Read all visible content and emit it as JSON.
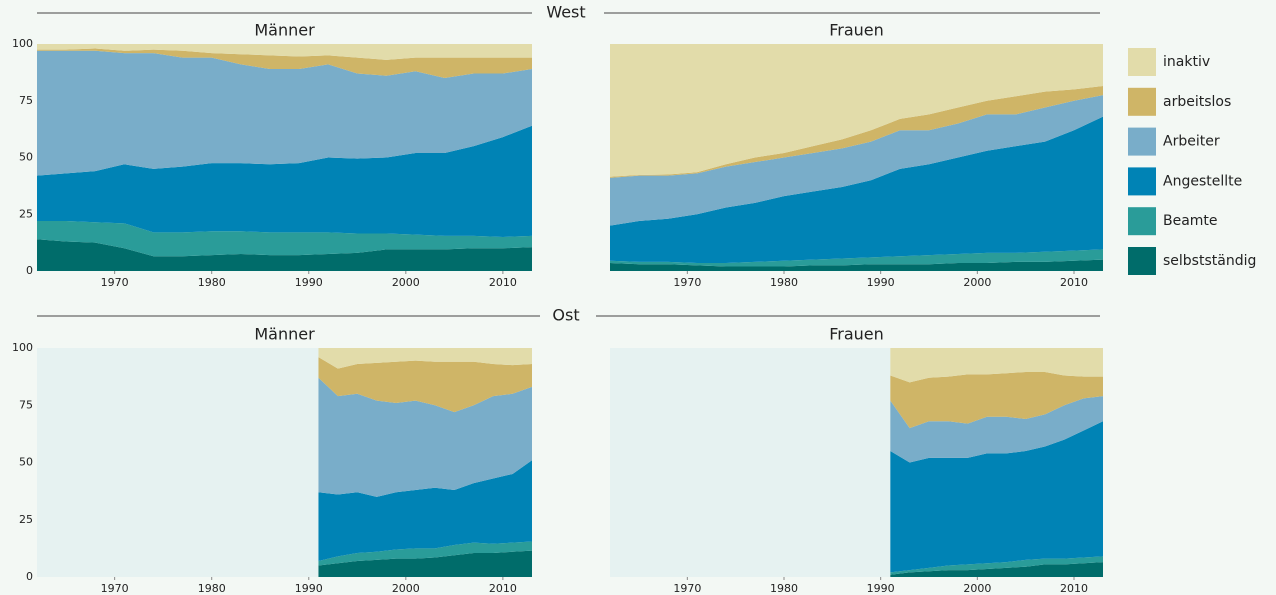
{
  "row_labels": [
    "West",
    "Ost"
  ],
  "legend": [
    {
      "name": "selbstständig",
      "color": "#006c6a"
    },
    {
      "name": "Beamte",
      "color": "#2a9c99"
    },
    {
      "name": "Angestellte",
      "color": "#0083b5"
    },
    {
      "name": "Arbeiter",
      "color": "#79adc9"
    },
    {
      "name": "arbeitslos",
      "color": "#cfb567"
    },
    {
      "name": "inaktiv",
      "color": "#e2dcaa"
    }
  ],
  "chart_data": [
    {
      "type": "area",
      "stacked": true,
      "title": "Männer",
      "x": [
        1962,
        1965,
        1968,
        1971,
        1974,
        1977,
        1980,
        1983,
        1986,
        1989,
        1992,
        1995,
        1998,
        2001,
        2004,
        2007,
        2010,
        2013
      ],
      "xlim": [
        1962,
        2013
      ],
      "xticks": [
        1970,
        1980,
        1990,
        2000,
        2010
      ],
      "ylim": [
        0,
        100
      ],
      "yticks": [
        0,
        25,
        50,
        75,
        100
      ],
      "series": [
        {
          "values": [
            14,
            13,
            12.5,
            10,
            6.5,
            6.5,
            7,
            7.5,
            7,
            7,
            7.5,
            8,
            9.5,
            9.5,
            9.5,
            10,
            10,
            10.5
          ]
        },
        {
          "values": [
            8,
            9,
            9,
            11,
            10.5,
            10.5,
            10.5,
            10,
            10,
            10,
            9.5,
            8.5,
            7,
            6.5,
            6,
            5.5,
            5,
            5
          ]
        },
        {
          "values": [
            20,
            21,
            22.5,
            26,
            28,
            29,
            30,
            30,
            30,
            30.5,
            33,
            33,
            33.5,
            36,
            36.5,
            39.5,
            44,
            48.5
          ]
        },
        {
          "values": [
            55,
            54,
            53,
            49,
            51,
            48,
            46.5,
            43.5,
            42,
            41.5,
            41,
            37.5,
            36,
            36,
            33,
            32,
            28,
            25
          ]
        },
        {
          "values": [
            0.5,
            0.5,
            1,
            1,
            1.5,
            3,
            2,
            4.5,
            6,
            5.5,
            4,
            7,
            7,
            6,
            9,
            7,
            7,
            5
          ]
        },
        {
          "values": [
            2.5,
            2.5,
            2,
            3,
            2.5,
            3,
            4,
            4.5,
            5,
            5.5,
            5,
            6,
            7,
            6,
            6,
            6,
            6,
            6
          ]
        }
      ]
    },
    {
      "type": "area",
      "stacked": true,
      "title": "Frauen",
      "x": [
        1962,
        1965,
        1968,
        1971,
        1974,
        1977,
        1980,
        1983,
        1986,
        1989,
        1992,
        1995,
        1998,
        2001,
        2004,
        2007,
        2010,
        2013
      ],
      "xlim": [
        1962,
        2013
      ],
      "xticks": [
        1970,
        1980,
        1990,
        2000,
        2010
      ],
      "ylim": [
        0,
        100
      ],
      "series": [
        {
          "values": [
            3.5,
            3,
            3,
            2.5,
            2,
            2,
            2,
            2.5,
            2.5,
            3,
            3,
            3,
            3.5,
            3.5,
            4,
            4,
            4.5,
            5
          ]
        },
        {
          "values": [
            1,
            1,
            1,
            1,
            1.5,
            2,
            2.5,
            2.5,
            3,
            3,
            3.5,
            4,
            4,
            4.5,
            4,
            4.5,
            4.5,
            4.5
          ]
        },
        {
          "values": [
            15.5,
            18,
            19,
            21.5,
            24.5,
            26,
            28.5,
            30,
            31.5,
            34,
            38.5,
            40,
            42.5,
            45,
            47,
            48.5,
            53,
            58.5
          ]
        },
        {
          "values": [
            21,
            20,
            19,
            18,
            18,
            18,
            17,
            17,
            17,
            17,
            17,
            15,
            15,
            16,
            14,
            15,
            13,
            9.5
          ]
        },
        {
          "values": [
            0.5,
            0.3,
            0.5,
            0.5,
            1,
            2,
            2,
            3,
            4,
            5,
            5,
            7,
            7,
            6,
            8,
            7,
            5,
            4
          ]
        },
        {
          "values": [
            58.5,
            57.7,
            57.5,
            56.5,
            53,
            50,
            48,
            45,
            42,
            38,
            33,
            31,
            28,
            25,
            23,
            21,
            20,
            18.5
          ]
        }
      ]
    },
    {
      "type": "area",
      "stacked": true,
      "title": "Männer",
      "x": [
        1991,
        1993,
        1995,
        1997,
        1999,
        2001,
        2003,
        2005,
        2007,
        2009,
        2011,
        2013
      ],
      "xlim": [
        1962,
        2013
      ],
      "xticks": [
        1970,
        1980,
        1990,
        2000,
        2010
      ],
      "ylim": [
        0,
        100
      ],
      "yticks": [
        0,
        25,
        50,
        75,
        100
      ],
      "series": [
        {
          "values": [
            5,
            6,
            7,
            7.5,
            8,
            8,
            8.5,
            9.5,
            10.5,
            10.5,
            11,
            11.5
          ]
        },
        {
          "values": [
            2,
            3,
            3.5,
            3.5,
            4,
            4.5,
            4,
            4.5,
            4.5,
            4,
            4,
            4
          ]
        },
        {
          "values": [
            30,
            27,
            26.5,
            24,
            25,
            25.5,
            26.5,
            24,
            26,
            28.5,
            30,
            35.5
          ]
        },
        {
          "values": [
            50,
            43,
            43,
            42,
            39,
            39,
            36,
            34,
            34,
            36,
            35,
            32
          ]
        },
        {
          "values": [
            9,
            12,
            13,
            16.5,
            18,
            17.5,
            19,
            22,
            19,
            14,
            12.5,
            10
          ]
        },
        {
          "values": [
            4,
            9,
            7,
            6.5,
            6,
            5.5,
            6,
            6,
            6,
            7,
            7.5,
            7
          ]
        }
      ]
    },
    {
      "type": "area",
      "stacked": true,
      "title": "Frauen",
      "x": [
        1991,
        1993,
        1995,
        1997,
        1999,
        2001,
        2003,
        2005,
        2007,
        2009,
        2011,
        2013
      ],
      "xlim": [
        1962,
        2013
      ],
      "xticks": [
        1970,
        1980,
        1990,
        2000,
        2010
      ],
      "ylim": [
        0,
        100
      ],
      "series": [
        {
          "values": [
            1,
            2,
            2.5,
            3,
            3,
            3.5,
            4,
            4.5,
            5.5,
            5.5,
            6,
            6.5
          ]
        },
        {
          "values": [
            1,
            1,
            1.5,
            2,
            2.5,
            2.5,
            2.5,
            3,
            2.5,
            2.5,
            2.5,
            2.5
          ]
        },
        {
          "values": [
            53,
            47,
            48,
            47,
            46.5,
            48,
            47.5,
            47.5,
            49,
            52,
            55.5,
            59
          ]
        },
        {
          "values": [
            22,
            15,
            16,
            16,
            15,
            16,
            16,
            14,
            14,
            15,
            14,
            11
          ]
        },
        {
          "values": [
            11,
            20,
            19,
            19.5,
            21.5,
            18.5,
            19,
            20.5,
            18.5,
            13,
            9.5,
            8.5
          ]
        },
        {
          "values": [
            12,
            15,
            13,
            12.5,
            11.5,
            11.5,
            11,
            10.5,
            10.5,
            12,
            12.5,
            12.5
          ]
        }
      ]
    }
  ]
}
